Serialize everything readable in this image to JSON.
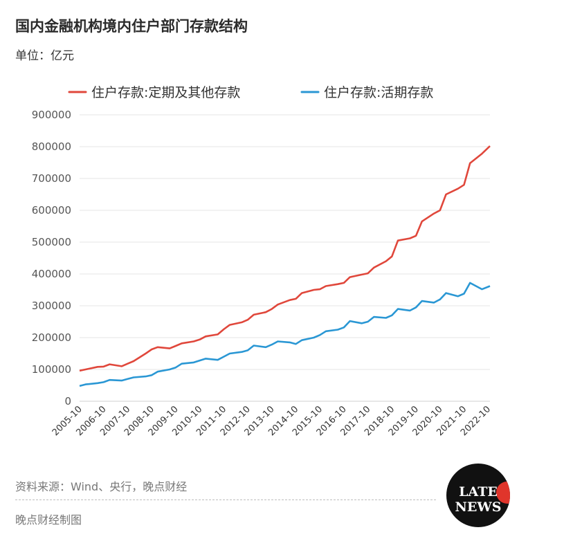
{
  "header": {
    "title": "国内金融机构境内住户部门存款结构",
    "unit": "单位：亿元"
  },
  "footer": {
    "source": "资料来源：Wind、央行，晚点财经",
    "credit": "晚点财经制图"
  },
  "logo": {
    "line1": "LATE",
    "line2": "NEWS"
  },
  "colors": {
    "series1": "#e0473b",
    "series2": "#2a97d4",
    "grid": "#e6e6e6"
  },
  "chart_data": {
    "type": "line",
    "title": "国内金融机构境内住户部门存款结构",
    "ylabel": "单位：亿元",
    "ylim": [
      0,
      900000
    ],
    "yticks": [
      0,
      100000,
      200000,
      300000,
      400000,
      500000,
      600000,
      700000,
      800000,
      900000
    ],
    "xticks": [
      "2005-10",
      "2006-10",
      "2007-10",
      "2008-10",
      "2009-10",
      "2010-10",
      "2011-10",
      "2012-10",
      "2013-10",
      "2014-10",
      "2015-10",
      "2016-10",
      "2017-10",
      "2018-10",
      "2019-10",
      "2020-10",
      "2021-10",
      "2022-10"
    ],
    "xlim": [
      2005.75,
      2022.83
    ],
    "legend_position": "top",
    "grid": true,
    "series": [
      {
        "name": "住户存款:定期及其他存款",
        "color": "#e0473b",
        "x": [
          2005.75,
          2006.0,
          2006.5,
          2006.75,
          2007.0,
          2007.5,
          2007.75,
          2008.0,
          2008.5,
          2008.75,
          2009.0,
          2009.5,
          2009.75,
          2010.0,
          2010.5,
          2010.75,
          2011.0,
          2011.5,
          2011.75,
          2012.0,
          2012.5,
          2012.75,
          2013.0,
          2013.5,
          2013.75,
          2014.0,
          2014.5,
          2014.75,
          2015.0,
          2015.5,
          2015.75,
          2016.0,
          2016.5,
          2016.75,
          2017.0,
          2017.5,
          2017.75,
          2018.0,
          2018.5,
          2018.75,
          2019.0,
          2019.5,
          2019.75,
          2020.0,
          2020.5,
          2020.75,
          2021.0,
          2021.5,
          2021.75,
          2022.0,
          2022.5,
          2022.83
        ],
        "values": [
          96000,
          100000,
          108000,
          109000,
          116000,
          110000,
          118000,
          126000,
          150000,
          163000,
          170000,
          166000,
          174000,
          182000,
          188000,
          194000,
          204000,
          210000,
          226000,
          240000,
          248000,
          256000,
          272000,
          280000,
          290000,
          304000,
          318000,
          322000,
          340000,
          350000,
          352000,
          362000,
          368000,
          372000,
          390000,
          398000,
          402000,
          420000,
          440000,
          455000,
          505000,
          512000,
          520000,
          565000,
          590000,
          600000,
          650000,
          668000,
          680000,
          748000,
          778000,
          802000
        ]
      },
      {
        "name": "住户存款:活期存款",
        "color": "#2a97d4",
        "x": [
          2005.75,
          2006.0,
          2006.5,
          2006.75,
          2007.0,
          2007.5,
          2007.75,
          2008.0,
          2008.5,
          2008.75,
          2009.0,
          2009.5,
          2009.75,
          2010.0,
          2010.5,
          2010.75,
          2011.0,
          2011.5,
          2011.75,
          2012.0,
          2012.5,
          2012.75,
          2013.0,
          2013.5,
          2013.75,
          2014.0,
          2014.5,
          2014.75,
          2015.0,
          2015.5,
          2015.75,
          2016.0,
          2016.5,
          2016.75,
          2017.0,
          2017.5,
          2017.75,
          2018.0,
          2018.5,
          2018.75,
          2019.0,
          2019.5,
          2019.75,
          2020.0,
          2020.5,
          2020.75,
          2021.0,
          2021.5,
          2021.75,
          2022.0,
          2022.5,
          2022.83
        ],
        "values": [
          48000,
          53000,
          57000,
          60000,
          67000,
          65000,
          70000,
          75000,
          78000,
          82000,
          93000,
          100000,
          106000,
          118000,
          122000,
          128000,
          134000,
          130000,
          140000,
          150000,
          155000,
          160000,
          175000,
          170000,
          178000,
          188000,
          185000,
          180000,
          192000,
          200000,
          208000,
          220000,
          225000,
          232000,
          252000,
          245000,
          250000,
          265000,
          262000,
          270000,
          290000,
          285000,
          295000,
          315000,
          310000,
          320000,
          340000,
          330000,
          338000,
          372000,
          352000,
          362000
        ]
      }
    ]
  }
}
